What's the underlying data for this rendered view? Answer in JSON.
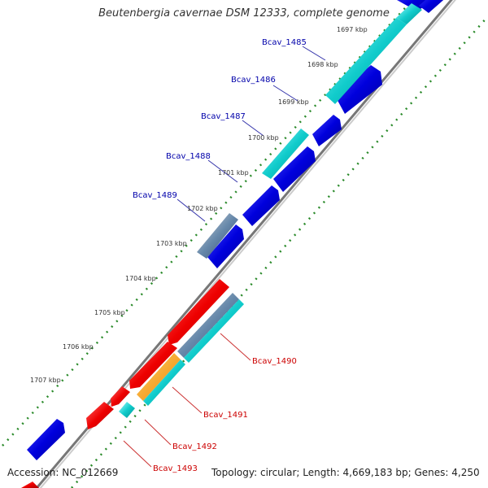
{
  "title": "Beutenbergia cavernae DSM 12333, complete genome",
  "footer": {
    "accession": "Accession: NC_012669",
    "summary": "Topology: circular; Length: 4,669,183 bp; Genes: 4,250"
  },
  "ticks": [
    "1697 kbp",
    "1698 kbp",
    "1699 kbp",
    "1700 kbp",
    "1701 kbp",
    "1702 kbp",
    "1703 kbp",
    "1704 kbp",
    "1705 kbp",
    "1706 kbp",
    "1707 kbp"
  ],
  "gene_labels": [
    {
      "text": "Bcav_1485",
      "color": "#0000aa"
    },
    {
      "text": "Bcav_1486",
      "color": "#0000aa"
    },
    {
      "text": "Bcav_1487",
      "color": "#0000aa"
    },
    {
      "text": "Bcav_1488",
      "color": "#0000aa"
    },
    {
      "text": "Bcav_1489",
      "color": "#0000aa"
    },
    {
      "text": "Bcav_1490",
      "color": "#cc0000"
    },
    {
      "text": "Bcav_1491",
      "color": "#cc0000"
    },
    {
      "text": "Bcav_1492",
      "color": "#cc0000"
    },
    {
      "text": "Bcav_1493",
      "color": "#cc0000"
    }
  ],
  "colors": {
    "backbone": "#888888",
    "tick_mark": "#2a8a2a",
    "cds_forward": "#0000dd",
    "cds_reverse": "#dd0000",
    "feature_cyan": "#00c8c8",
    "feature_orange": "#ff9900",
    "feature_steel": "#5577aa"
  }
}
